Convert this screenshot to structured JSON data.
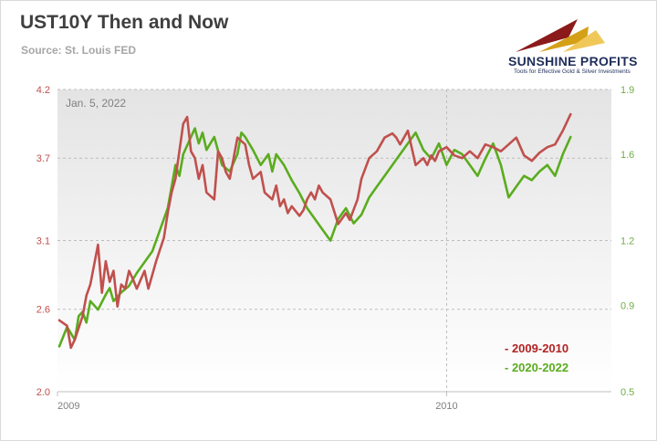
{
  "header": {
    "title": "UST10Y Then and Now",
    "source": "Source: St. Louis FED"
  },
  "logo": {
    "name": "SUNSHINE PROFITS",
    "tagline": "Tools for Effective Gold & Silver Investments"
  },
  "colors": {
    "series_2009": "#c0504d",
    "series_2020": "#5aac1e",
    "left_axis": "#c0504d",
    "right_axis": "#70ad47"
  },
  "chart_data": {
    "type": "line",
    "title": "UST10Y Then and Now",
    "annotation": "Jan. 5, 2022",
    "x_ticks": [
      "2009",
      "2010"
    ],
    "y_left": {
      "ticks": [
        "2.0",
        "2.6",
        "3.1",
        "3.7",
        "4.2"
      ],
      "ylim": [
        2.0,
        4.2
      ]
    },
    "y_right": {
      "ticks": [
        "0.5",
        "0.9",
        "1.2",
        "1.6",
        "1.9"
      ],
      "ylim": [
        0.5,
        1.9
      ]
    },
    "grid": true,
    "legend_position": "bottom-right",
    "series": [
      {
        "name": "- 2009-2010",
        "axis": "left",
        "step": 0.02,
        "x": [
          0.0,
          0.02,
          0.03,
          0.04,
          0.06,
          0.07,
          0.08,
          0.1,
          0.11,
          0.12,
          0.13,
          0.14,
          0.15,
          0.16,
          0.17,
          0.18,
          0.19,
          0.2,
          0.22,
          0.23,
          0.25,
          0.27,
          0.28,
          0.29,
          0.3,
          0.32,
          0.33,
          0.34,
          0.35,
          0.36,
          0.37,
          0.38,
          0.4,
          0.41,
          0.42,
          0.43,
          0.44,
          0.46,
          0.48,
          0.49,
          0.5,
          0.52,
          0.53,
          0.55,
          0.56,
          0.57,
          0.58,
          0.59,
          0.6,
          0.62,
          0.63,
          0.64,
          0.65,
          0.66,
          0.67,
          0.68,
          0.7,
          0.72,
          0.74,
          0.75,
          0.77,
          0.78,
          0.8,
          0.82,
          0.84,
          0.86,
          0.87,
          0.88,
          0.9,
          0.92,
          0.94,
          0.95,
          0.96,
          0.97,
          0.98,
          1.0,
          1.02,
          1.04,
          1.06,
          1.08,
          1.1,
          1.12,
          1.14,
          1.16,
          1.18,
          1.2,
          1.22,
          1.24,
          1.26,
          1.28,
          1.3,
          1.32
        ],
        "values": [
          2.52,
          2.48,
          2.32,
          2.38,
          2.55,
          2.7,
          2.78,
          3.07,
          2.72,
          2.95,
          2.8,
          2.88,
          2.62,
          2.78,
          2.75,
          2.88,
          2.82,
          2.75,
          2.88,
          2.75,
          2.95,
          3.12,
          3.3,
          3.45,
          3.55,
          3.95,
          4.0,
          3.75,
          3.7,
          3.55,
          3.65,
          3.45,
          3.4,
          3.75,
          3.7,
          3.6,
          3.55,
          3.85,
          3.8,
          3.65,
          3.55,
          3.6,
          3.45,
          3.4,
          3.5,
          3.35,
          3.4,
          3.3,
          3.35,
          3.28,
          3.32,
          3.4,
          3.45,
          3.4,
          3.5,
          3.45,
          3.4,
          3.22,
          3.3,
          3.25,
          3.4,
          3.55,
          3.7,
          3.75,
          3.85,
          3.88,
          3.85,
          3.8,
          3.9,
          3.65,
          3.7,
          3.65,
          3.72,
          3.68,
          3.75,
          3.78,
          3.72,
          3.7,
          3.75,
          3.7,
          3.8,
          3.78,
          3.75,
          3.8,
          3.85,
          3.72,
          3.68,
          3.74,
          3.78,
          3.8,
          3.9,
          4.02
        ]
      },
      {
        "name": "- 2020-2022",
        "axis": "right",
        "step": 0.02,
        "x": [
          0.0,
          0.02,
          0.04,
          0.05,
          0.06,
          0.07,
          0.08,
          0.1,
          0.12,
          0.13,
          0.14,
          0.16,
          0.18,
          0.2,
          0.22,
          0.24,
          0.26,
          0.28,
          0.29,
          0.3,
          0.31,
          0.32,
          0.34,
          0.35,
          0.36,
          0.37,
          0.38,
          0.4,
          0.42,
          0.44,
          0.46,
          0.47,
          0.48,
          0.5,
          0.52,
          0.54,
          0.55,
          0.56,
          0.58,
          0.6,
          0.62,
          0.64,
          0.66,
          0.68,
          0.7,
          0.72,
          0.74,
          0.76,
          0.78,
          0.8,
          0.82,
          0.84,
          0.86,
          0.88,
          0.9,
          0.92,
          0.94,
          0.96,
          0.98,
          1.0,
          1.02,
          1.04,
          1.06,
          1.08,
          1.1,
          1.12,
          1.14,
          1.16,
          1.18,
          1.2,
          1.22,
          1.24,
          1.26,
          1.28,
          1.3,
          1.32
        ],
        "values": [
          0.71,
          0.8,
          0.74,
          0.85,
          0.87,
          0.82,
          0.92,
          0.88,
          0.95,
          0.98,
          0.92,
          0.96,
          0.99,
          1.05,
          1.1,
          1.15,
          1.25,
          1.35,
          1.45,
          1.55,
          1.5,
          1.6,
          1.68,
          1.72,
          1.65,
          1.7,
          1.62,
          1.68,
          1.55,
          1.52,
          1.6,
          1.7,
          1.68,
          1.62,
          1.55,
          1.6,
          1.52,
          1.6,
          1.55,
          1.48,
          1.42,
          1.35,
          1.3,
          1.25,
          1.2,
          1.3,
          1.35,
          1.28,
          1.32,
          1.4,
          1.45,
          1.5,
          1.55,
          1.6,
          1.65,
          1.7,
          1.62,
          1.58,
          1.65,
          1.55,
          1.62,
          1.6,
          1.55,
          1.5,
          1.58,
          1.65,
          1.55,
          1.4,
          1.45,
          1.5,
          1.48,
          1.52,
          1.55,
          1.5,
          1.6,
          1.68
        ]
      }
    ]
  }
}
